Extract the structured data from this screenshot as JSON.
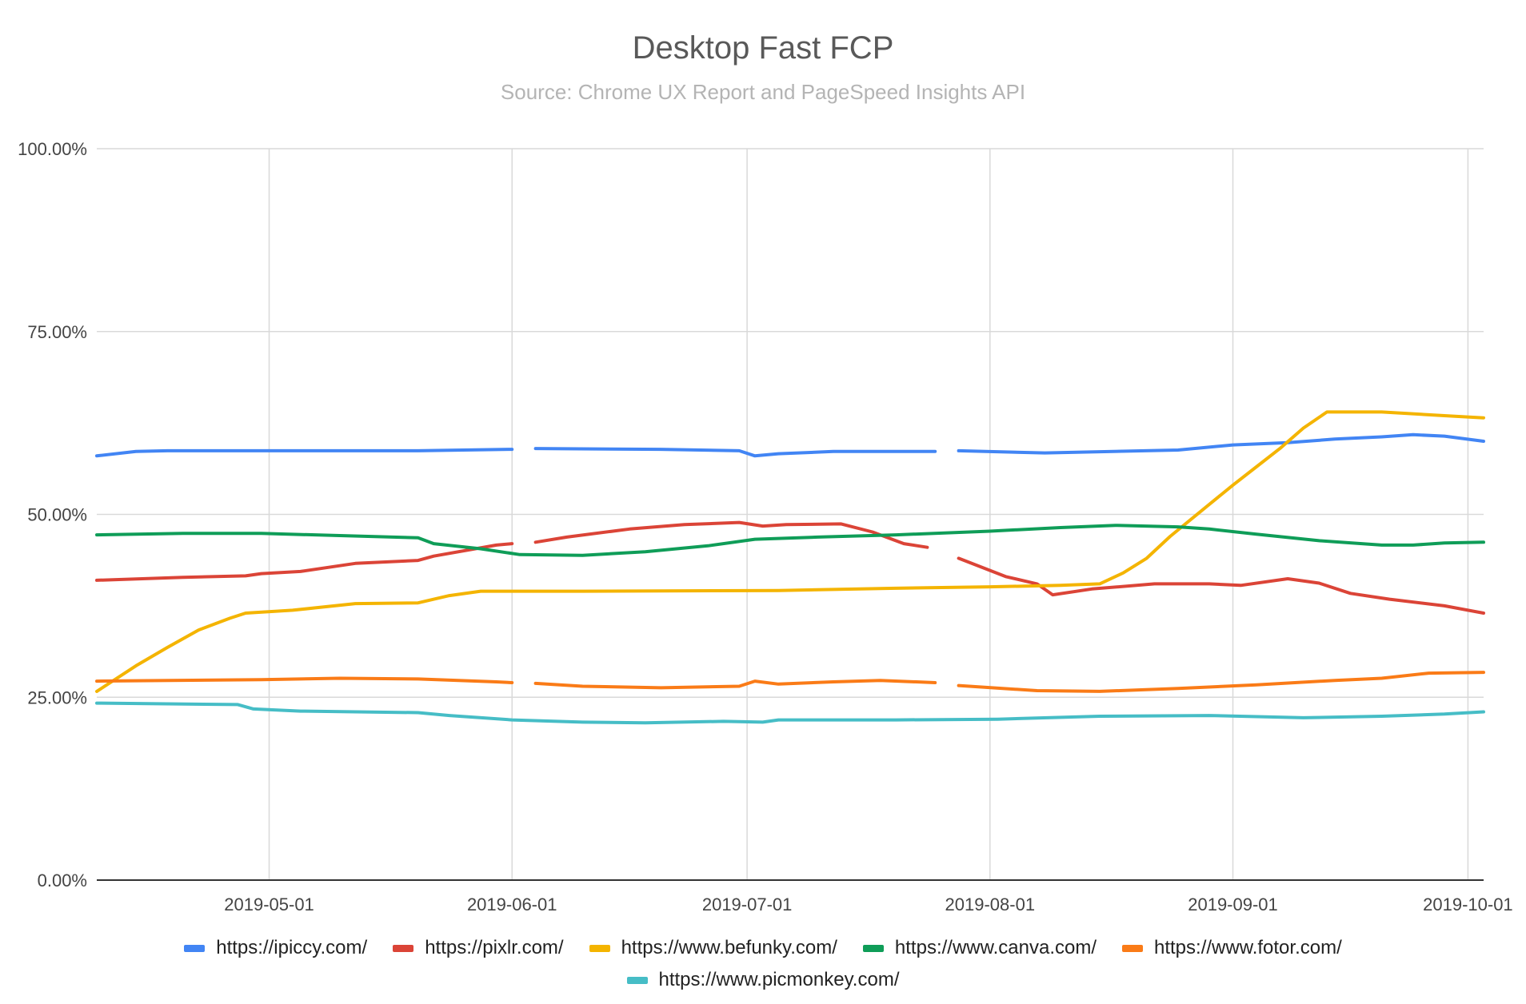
{
  "chart_data": {
    "type": "line",
    "title": "Desktop Fast FCP",
    "subtitle": "Source: Chrome UX Report and PageSpeed Insights API",
    "xlabel": "",
    "ylabel": "",
    "ylim": [
      0,
      100
    ],
    "xlim": [
      "2019-04-09",
      "2019-10-03"
    ],
    "y_ticks": [
      "0.00%",
      "25.00%",
      "50.00%",
      "75.00%",
      "100.00%"
    ],
    "x_ticks": [
      "2019-05-01",
      "2019-06-01",
      "2019-07-01",
      "2019-08-01",
      "2019-09-01",
      "2019-10-01"
    ],
    "grid": true,
    "legend_position": "bottom",
    "series": [
      {
        "name": "https://ipiccy.com/",
        "color": "#4285f4",
        "points": [
          [
            "2019-04-09",
            58.0
          ],
          [
            "2019-04-14",
            58.6
          ],
          [
            "2019-04-18",
            58.7
          ],
          [
            "2019-05-01",
            58.7
          ],
          [
            "2019-05-20",
            58.7
          ],
          [
            "2019-06-01",
            58.9
          ],
          [
            "2019-06-03",
            null
          ],
          [
            "2019-06-04",
            59.0
          ],
          [
            "2019-06-20",
            58.9
          ],
          [
            "2019-06-30",
            58.7
          ],
          [
            "2019-07-02",
            58.0
          ],
          [
            "2019-07-05",
            58.3
          ],
          [
            "2019-07-12",
            58.6
          ],
          [
            "2019-07-25",
            58.6
          ],
          [
            "2019-07-26",
            null
          ],
          [
            "2019-07-28",
            58.7
          ],
          [
            "2019-08-08",
            58.4
          ],
          [
            "2019-08-25",
            58.8
          ],
          [
            "2019-09-01",
            59.5
          ],
          [
            "2019-09-08",
            59.8
          ],
          [
            "2019-09-14",
            60.3
          ],
          [
            "2019-09-20",
            60.6
          ],
          [
            "2019-09-24",
            60.9
          ],
          [
            "2019-09-28",
            60.7
          ],
          [
            "2019-10-03",
            60.0
          ]
        ]
      },
      {
        "name": "https://pixlr.com/",
        "color": "#db4437",
        "points": [
          [
            "2019-04-09",
            41.0
          ],
          [
            "2019-04-20",
            41.4
          ],
          [
            "2019-04-28",
            41.6
          ],
          [
            "2019-04-30",
            41.9
          ],
          [
            "2019-05-05",
            42.2
          ],
          [
            "2019-05-12",
            43.3
          ],
          [
            "2019-05-20",
            43.7
          ],
          [
            "2019-05-22",
            44.3
          ],
          [
            "2019-05-30",
            45.8
          ],
          [
            "2019-06-01",
            46.0
          ],
          [
            "2019-06-02",
            null
          ],
          [
            "2019-06-04",
            46.2
          ],
          [
            "2019-06-08",
            46.9
          ],
          [
            "2019-06-16",
            48.0
          ],
          [
            "2019-06-23",
            48.6
          ],
          [
            "2019-06-30",
            48.9
          ],
          [
            "2019-07-03",
            48.4
          ],
          [
            "2019-07-06",
            48.6
          ],
          [
            "2019-07-13",
            48.7
          ],
          [
            "2019-07-17",
            47.6
          ],
          [
            "2019-07-21",
            46.0
          ],
          [
            "2019-07-24",
            45.5
          ],
          [
            "2019-07-25",
            null
          ],
          [
            "2019-07-28",
            44.0
          ],
          [
            "2019-08-03",
            41.5
          ],
          [
            "2019-08-07",
            40.5
          ],
          [
            "2019-08-09",
            39.0
          ],
          [
            "2019-08-14",
            39.8
          ],
          [
            "2019-08-22",
            40.5
          ],
          [
            "2019-08-29",
            40.5
          ],
          [
            "2019-09-02",
            40.3
          ],
          [
            "2019-09-08",
            41.2
          ],
          [
            "2019-09-12",
            40.6
          ],
          [
            "2019-09-16",
            39.2
          ],
          [
            "2019-09-21",
            38.4
          ],
          [
            "2019-09-28",
            37.5
          ],
          [
            "2019-10-03",
            36.5
          ]
        ]
      },
      {
        "name": "https://www.befunky.com/",
        "color": "#f4b400",
        "points": [
          [
            "2019-04-09",
            25.8
          ],
          [
            "2019-04-14",
            29.3
          ],
          [
            "2019-04-18",
            31.8
          ],
          [
            "2019-04-22",
            34.2
          ],
          [
            "2019-04-26",
            35.8
          ],
          [
            "2019-04-28",
            36.5
          ],
          [
            "2019-05-04",
            36.9
          ],
          [
            "2019-05-12",
            37.8
          ],
          [
            "2019-05-20",
            37.9
          ],
          [
            "2019-05-24",
            38.9
          ],
          [
            "2019-05-28",
            39.5
          ],
          [
            "2019-06-10",
            39.5
          ],
          [
            "2019-07-05",
            39.6
          ],
          [
            "2019-07-20",
            39.9
          ],
          [
            "2019-08-01",
            40.1
          ],
          [
            "2019-08-10",
            40.3
          ],
          [
            "2019-08-15",
            40.5
          ],
          [
            "2019-08-18",
            42.0
          ],
          [
            "2019-08-21",
            44.0
          ],
          [
            "2019-08-24",
            47.0
          ],
          [
            "2019-08-28",
            50.5
          ],
          [
            "2019-09-01",
            54.0
          ],
          [
            "2019-09-04",
            56.5
          ],
          [
            "2019-09-07",
            59.0
          ],
          [
            "2019-09-10",
            61.8
          ],
          [
            "2019-09-13",
            64.0
          ],
          [
            "2019-09-20",
            64.0
          ],
          [
            "2019-09-28",
            63.5
          ],
          [
            "2019-10-03",
            63.2
          ]
        ]
      },
      {
        "name": "https://www.canva.com/",
        "color": "#0f9d58",
        "points": [
          [
            "2019-04-09",
            47.2
          ],
          [
            "2019-04-20",
            47.4
          ],
          [
            "2019-04-30",
            47.4
          ],
          [
            "2019-05-10",
            47.1
          ],
          [
            "2019-05-20",
            46.8
          ],
          [
            "2019-05-22",
            46.0
          ],
          [
            "2019-05-28",
            45.3
          ],
          [
            "2019-06-02",
            44.5
          ],
          [
            "2019-06-10",
            44.4
          ],
          [
            "2019-06-18",
            44.9
          ],
          [
            "2019-06-26",
            45.7
          ],
          [
            "2019-07-02",
            46.6
          ],
          [
            "2019-07-10",
            46.9
          ],
          [
            "2019-07-20",
            47.2
          ],
          [
            "2019-08-01",
            47.7
          ],
          [
            "2019-08-10",
            48.2
          ],
          [
            "2019-08-17",
            48.5
          ],
          [
            "2019-08-25",
            48.3
          ],
          [
            "2019-08-29",
            48.0
          ],
          [
            "2019-09-04",
            47.3
          ],
          [
            "2019-09-12",
            46.4
          ],
          [
            "2019-09-20",
            45.8
          ],
          [
            "2019-09-24",
            45.8
          ],
          [
            "2019-09-28",
            46.1
          ],
          [
            "2019-10-03",
            46.2
          ]
        ]
      },
      {
        "name": "https://www.fotor.com/",
        "color": "#fa7b17",
        "points": [
          [
            "2019-04-09",
            27.2
          ],
          [
            "2019-04-30",
            27.4
          ],
          [
            "2019-05-10",
            27.6
          ],
          [
            "2019-05-20",
            27.5
          ],
          [
            "2019-05-30",
            27.1
          ],
          [
            "2019-06-01",
            27.0
          ],
          [
            "2019-06-02",
            null
          ],
          [
            "2019-06-04",
            26.9
          ],
          [
            "2019-06-10",
            26.5
          ],
          [
            "2019-06-20",
            26.3
          ],
          [
            "2019-06-30",
            26.5
          ],
          [
            "2019-07-02",
            27.2
          ],
          [
            "2019-07-05",
            26.8
          ],
          [
            "2019-07-12",
            27.1
          ],
          [
            "2019-07-18",
            27.3
          ],
          [
            "2019-07-25",
            27.0
          ],
          [
            "2019-07-26",
            null
          ],
          [
            "2019-07-28",
            26.6
          ],
          [
            "2019-08-07",
            25.9
          ],
          [
            "2019-08-15",
            25.8
          ],
          [
            "2019-08-25",
            26.2
          ],
          [
            "2019-09-04",
            26.7
          ],
          [
            "2019-09-14",
            27.3
          ],
          [
            "2019-09-20",
            27.6
          ],
          [
            "2019-09-26",
            28.3
          ],
          [
            "2019-10-03",
            28.4
          ]
        ]
      },
      {
        "name": "https://www.picmonkey.com/",
        "color": "#46bdc6",
        "points": [
          [
            "2019-04-09",
            24.2
          ],
          [
            "2019-04-27",
            24.0
          ],
          [
            "2019-04-29",
            23.4
          ],
          [
            "2019-05-05",
            23.1
          ],
          [
            "2019-05-20",
            22.9
          ],
          [
            "2019-05-24",
            22.5
          ],
          [
            "2019-06-01",
            21.9
          ],
          [
            "2019-06-10",
            21.6
          ],
          [
            "2019-06-18",
            21.5
          ],
          [
            "2019-06-28",
            21.7
          ],
          [
            "2019-07-03",
            21.6
          ],
          [
            "2019-07-05",
            21.9
          ],
          [
            "2019-07-20",
            21.9
          ],
          [
            "2019-08-02",
            22.0
          ],
          [
            "2019-08-15",
            22.4
          ],
          [
            "2019-08-29",
            22.5
          ],
          [
            "2019-09-10",
            22.2
          ],
          [
            "2019-09-20",
            22.4
          ],
          [
            "2019-09-28",
            22.7
          ],
          [
            "2019-10-03",
            23.0
          ]
        ]
      }
    ]
  }
}
